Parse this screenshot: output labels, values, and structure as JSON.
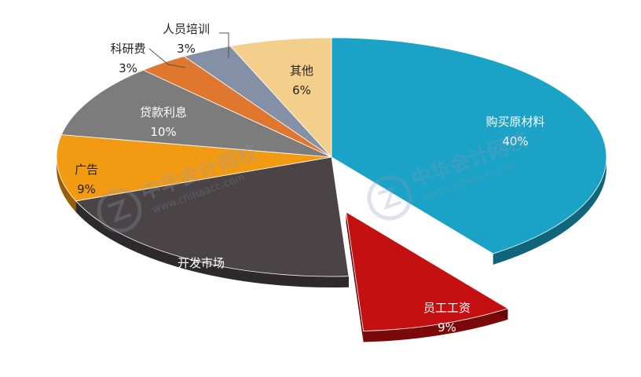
{
  "chart_data": {
    "type": "pie",
    "style": "3d-exploded",
    "categories": [
      "购买原材料",
      "员工工资",
      "开发市场",
      "广告",
      "贷款利息",
      "科研费",
      "人员培训",
      "其他"
    ],
    "values": [
      40,
      9,
      20,
      9,
      10,
      3,
      3,
      6
    ],
    "value_labels": [
      "40%",
      "9%",
      "20%",
      "9%",
      "10%",
      "3%",
      "3%",
      "6%"
    ],
    "colors": [
      "#1aa3c7",
      "#c41010",
      "#4a4446",
      "#f39a13",
      "#7c7c7c",
      "#e0772f",
      "#8390a6",
      "#f4cf8b"
    ],
    "exploded": [
      "员工工资"
    ],
    "legend": "none"
  },
  "watermark": {
    "name": "中华会计网校",
    "url": "www.chinaacc.com"
  }
}
